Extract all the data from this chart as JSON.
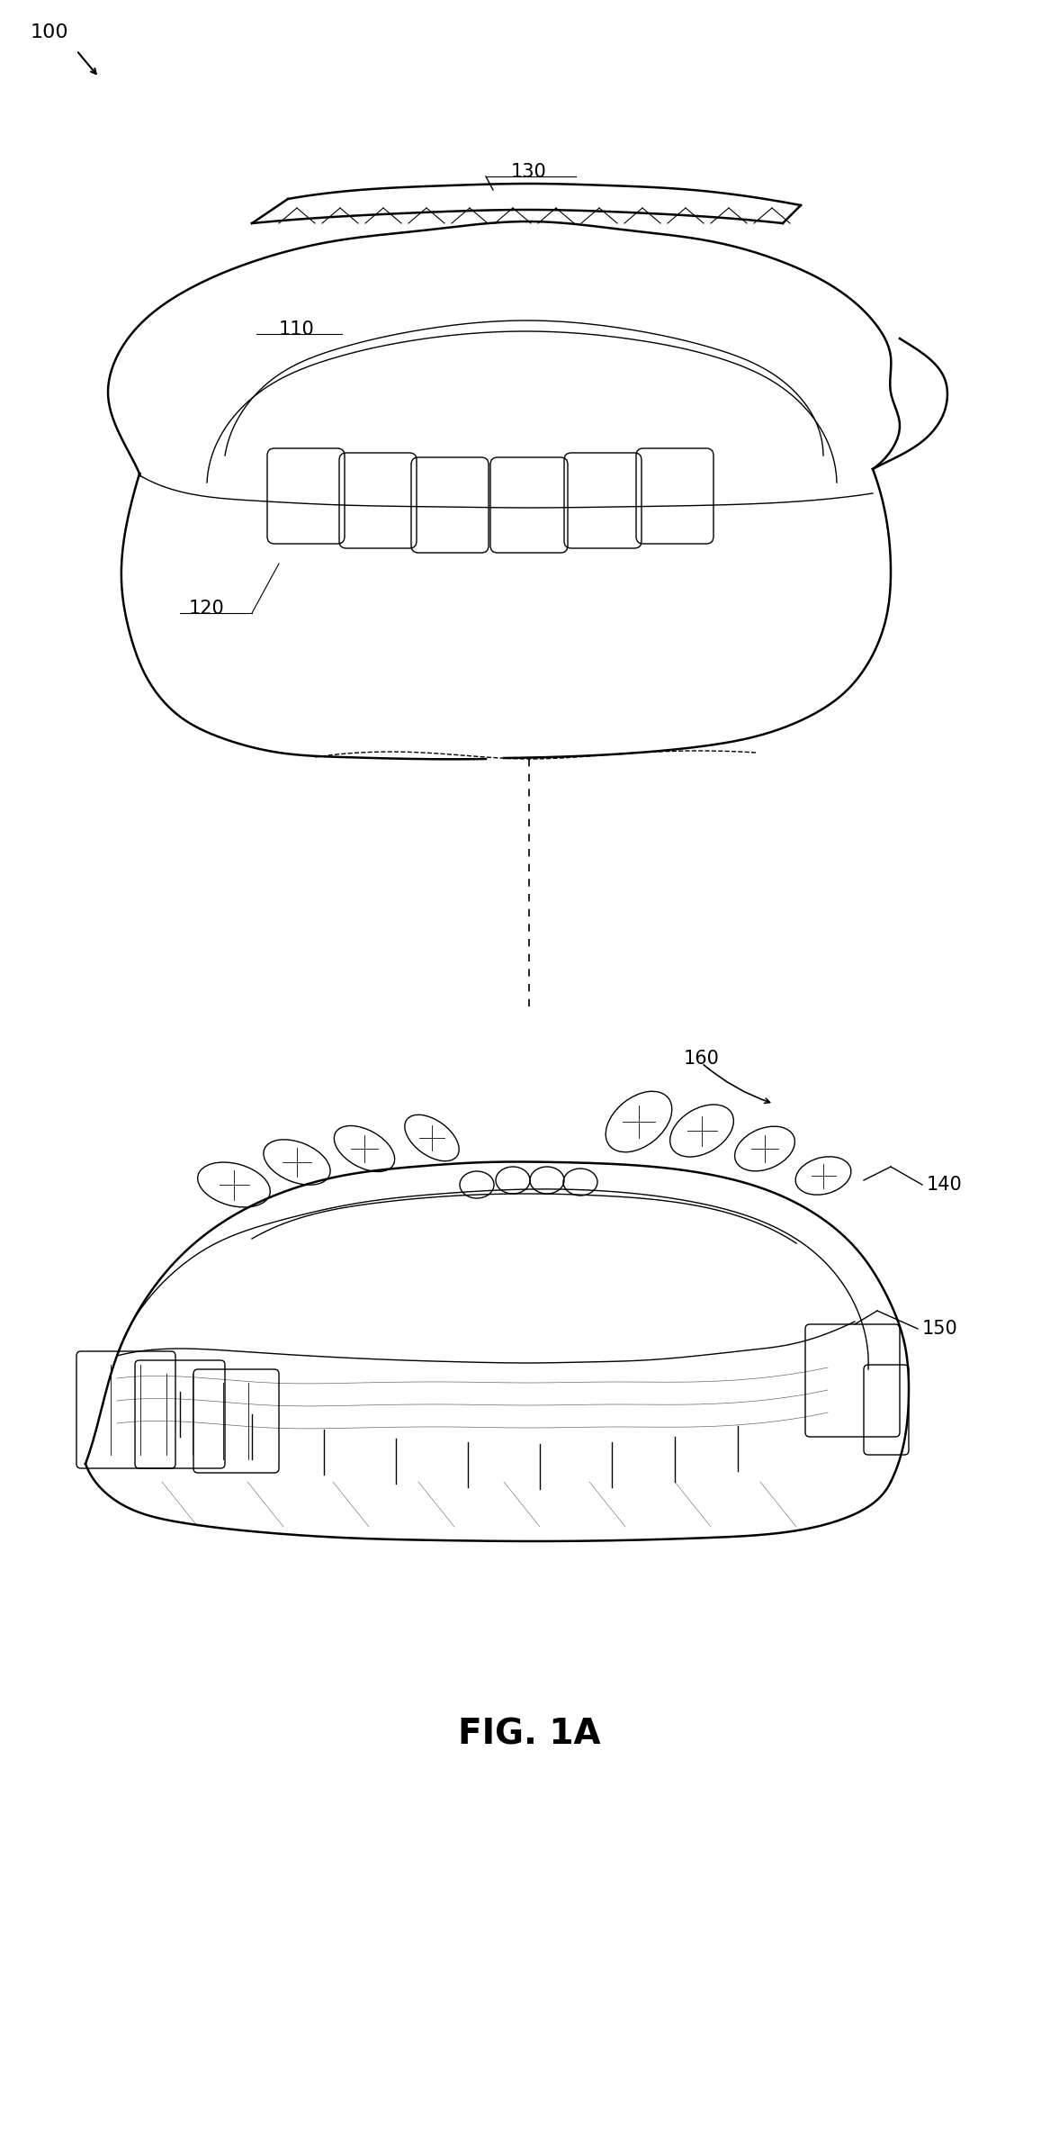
{
  "title": "FIG. 1A",
  "title_fontsize": 28,
  "title_fontweight": "bold",
  "background_color": "#ffffff",
  "line_color": "#000000",
  "label_100": "100",
  "label_110": "110",
  "label_120": "120",
  "label_130": "130",
  "label_140": "140",
  "label_150": "150",
  "label_160": "160",
  "fig_width": 11.77,
  "fig_height": 23.76
}
